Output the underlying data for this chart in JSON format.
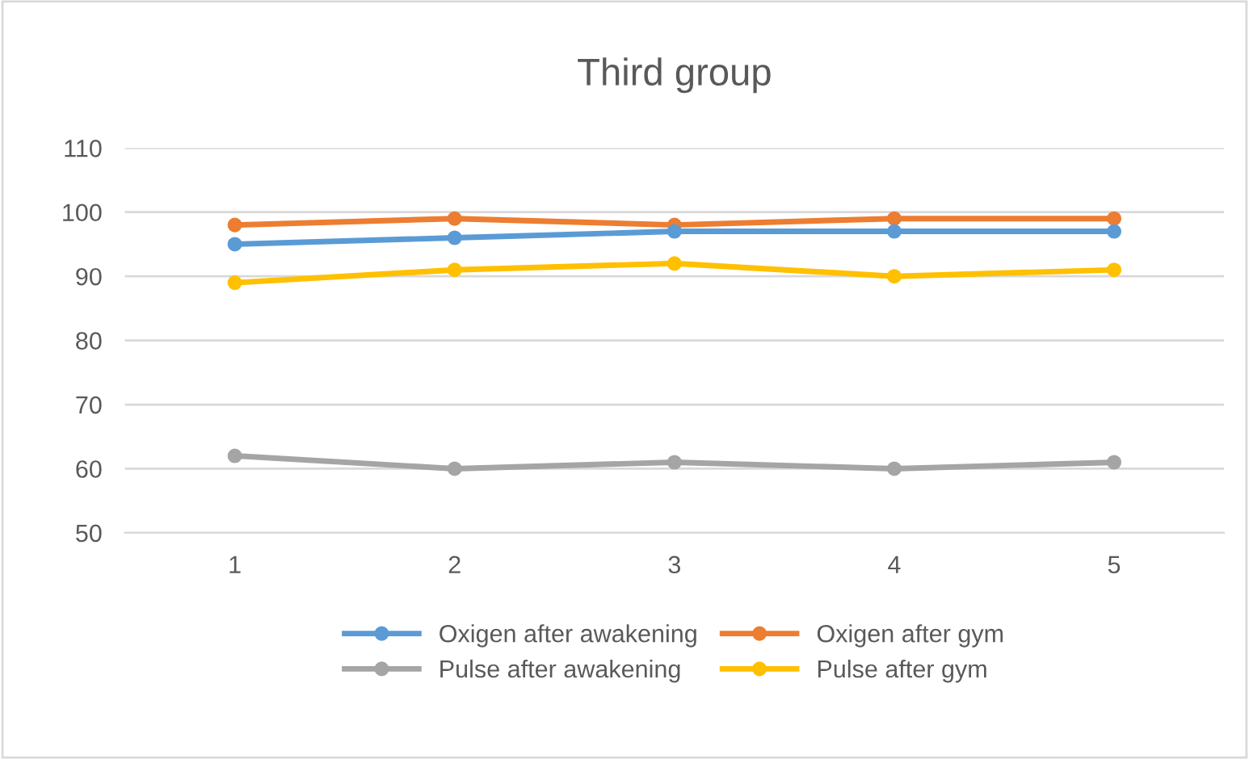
{
  "chart_data": {
    "type": "line",
    "title": "Third group",
    "categories": [
      "1",
      "2",
      "3",
      "4",
      "5"
    ],
    "series": [
      {
        "name": "Oxigen after awakening",
        "color": "#5b9bd5",
        "values": [
          95,
          96,
          97,
          97,
          97
        ]
      },
      {
        "name": "Oxigen after gym",
        "color": "#ed7d31",
        "values": [
          98,
          99,
          98,
          99,
          99
        ]
      },
      {
        "name": "Pulse after awakening",
        "color": "#a5a5a5",
        "values": [
          62,
          60,
          61,
          60,
          61
        ]
      },
      {
        "name": "Pulse after gym",
        "color": "#ffc000",
        "values": [
          89,
          91,
          92,
          90,
          91
        ]
      }
    ],
    "ylim": [
      50,
      110
    ],
    "yticks": [
      50,
      60,
      70,
      80,
      90,
      100,
      110
    ],
    "grid": "y",
    "legend": "bottom",
    "marker": "circle",
    "line_style": "solid"
  }
}
